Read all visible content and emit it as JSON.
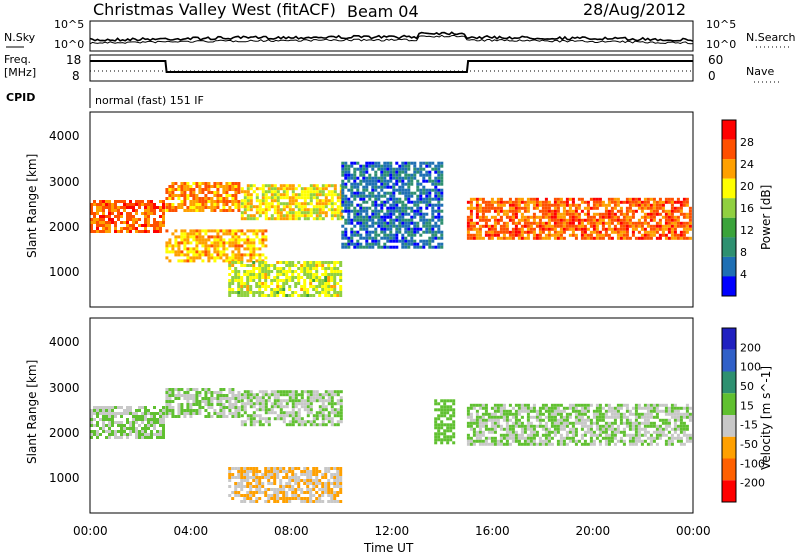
{
  "header": {
    "title": "Christmas Valley West (fitACF)",
    "beam": "Beam 04",
    "date": "28/Aug/2012"
  },
  "noise_panel": {
    "left_label": "N.Sky",
    "right_label": "N.Search",
    "left_ticks": [
      "10^5",
      "10^0"
    ],
    "right_ticks": [
      "10^5",
      "10^0"
    ]
  },
  "freq_panel": {
    "left_label_line1": "Freq.",
    "left_label_line2": "[MHz]",
    "right_label": "Nave",
    "left_ticks": [
      "18",
      "8"
    ],
    "right_ticks": [
      "60",
      "0"
    ],
    "freq_steps": [
      {
        "t": 0,
        "mhz": 16
      },
      {
        "t": 3,
        "mhz": 16
      },
      {
        "t": 3.05,
        "mhz": 10.5
      },
      {
        "t": 15,
        "mhz": 10.5
      },
      {
        "t": 15.05,
        "mhz": 16
      },
      {
        "t": 24,
        "mhz": 16
      }
    ]
  },
  "cpid_panel": {
    "label": "CPID",
    "mode": "normal (fast) 151 IF"
  },
  "power_panel": {
    "ylabel": "Slant Range [km]",
    "yticks": [
      "4000",
      "3000",
      "2000",
      "1000"
    ],
    "colorbar_label": "Power [dB]",
    "colorbar_ticks": [
      "28",
      "24",
      "20",
      "16",
      "12",
      "8",
      "4"
    ],
    "colors": [
      "#0000ff",
      "#1e6fb4",
      "#2e9070",
      "#3aa33a",
      "#90d040",
      "#ffff00",
      "#ffa000",
      "#ff5000",
      "#ff0000"
    ]
  },
  "velocity_panel": {
    "ylabel": "Slant Range [km]",
    "yticks": [
      "4000",
      "3000",
      "2000",
      "1000"
    ],
    "colorbar_label": "Velocity [m s^-1]",
    "colorbar_ticks": [
      "200",
      "100",
      "50",
      "15",
      "-15",
      "-50",
      "-100",
      "-200"
    ],
    "colors": [
      "#2020c0",
      "#3060c8",
      "#2e9070",
      "#60c030",
      "#c8c8c8",
      "#ffa000",
      "#ff6000",
      "#ff0000"
    ]
  },
  "x_axis": {
    "label": "Time UT",
    "ticks": [
      "00:00",
      "04:00",
      "08:00",
      "12:00",
      "16:00",
      "20:00",
      "00:00"
    ]
  },
  "chart_data": {
    "type": "heatmap",
    "title": "Christmas Valley West (fitACF)",
    "xlabel": "Time UT",
    "ylabel": "Slant Range [km]",
    "xlim": [
      0,
      24
    ],
    "ylim": [
      180,
      4500
    ],
    "series": [
      {
        "name": "Power [dB]",
        "regions": [
          {
            "t0": 0,
            "t1": 3,
            "r_top": 2550,
            "r_bot": 1850,
            "value": 26
          },
          {
            "t0": 3,
            "t1": 6,
            "r_top": 2950,
            "r_bot": 2300,
            "value": 24
          },
          {
            "t0": 3,
            "t1": 7,
            "r_top": 1900,
            "r_bot": 1200,
            "value": 22
          },
          {
            "t0": 6,
            "t1": 10,
            "r_top": 2900,
            "r_bot": 2100,
            "value": 20
          },
          {
            "t0": 5.5,
            "t1": 10,
            "r_top": 1200,
            "r_bot": 400,
            "value": 18
          },
          {
            "t0": 15,
            "t1": 24,
            "r_top": 2600,
            "r_bot": 1700,
            "value": 26
          },
          {
            "t0": 10,
            "t1": 14,
            "r_top": 3400,
            "r_bot": 1500,
            "value": 6
          }
        ]
      },
      {
        "name": "Velocity [m s^-1]",
        "regions": [
          {
            "t0": 0,
            "t1": 3,
            "r_top": 2550,
            "r_bot": 1850,
            "value": 0
          },
          {
            "t0": 3,
            "t1": 6,
            "r_top": 2950,
            "r_bot": 2300,
            "value": 0
          },
          {
            "t0": 6,
            "t1": 10,
            "r_top": 2900,
            "r_bot": 2100,
            "value": 0
          },
          {
            "t0": 5.5,
            "t1": 10,
            "r_top": 1200,
            "r_bot": 400,
            "value": -60
          },
          {
            "t0": 15,
            "t1": 24,
            "r_top": 2600,
            "r_bot": 1700,
            "value": 0
          },
          {
            "t0": 13.7,
            "t1": 14.5,
            "r_top": 2700,
            "r_bot": 1700,
            "value": 40
          }
        ]
      }
    ]
  }
}
